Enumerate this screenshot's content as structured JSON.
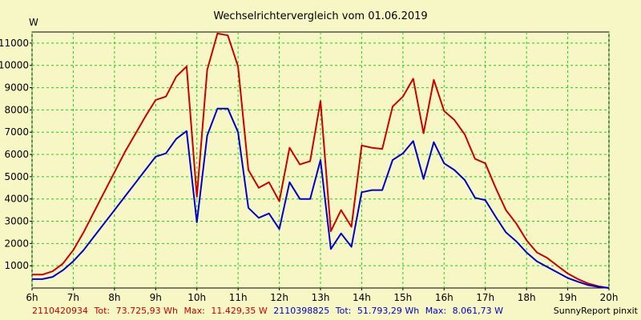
{
  "chart_data": {
    "type": "line",
    "title": "Wechselrichtervergleich vom 01.06.2019",
    "ylabel": "W",
    "xlabel": "",
    "x_ticks": [
      "6h",
      "7h",
      "8h",
      "9h",
      "10h",
      "11h",
      "12h",
      "13h",
      "14h",
      "15h",
      "16h",
      "17h",
      "18h",
      "19h",
      "20h"
    ],
    "y_ticks": [
      "1000",
      "2000",
      "3000",
      "4000",
      "5000",
      "6000",
      "7000",
      "8000",
      "9000",
      "10000",
      "11000"
    ],
    "xlim": [
      6,
      20
    ],
    "ylim": [
      0,
      11500
    ],
    "grid": true,
    "series": [
      {
        "name": "2110420934",
        "color": "#cc0000",
        "x": [
          6.0,
          6.25,
          6.5,
          6.75,
          7.0,
          7.25,
          7.5,
          7.75,
          8.0,
          8.25,
          8.5,
          8.75,
          9.0,
          9.25,
          9.5,
          9.75,
          10.0,
          10.25,
          10.5,
          10.75,
          11.0,
          11.25,
          11.5,
          11.75,
          12.0,
          12.25,
          12.5,
          12.75,
          13.0,
          13.25,
          13.5,
          13.75,
          14.0,
          14.25,
          14.5,
          14.75,
          15.0,
          15.25,
          15.5,
          15.75,
          16.0,
          16.25,
          16.5,
          16.75,
          17.0,
          17.25,
          17.5,
          17.75,
          18.0,
          18.25,
          18.5,
          18.75,
          19.0,
          19.25,
          19.5,
          19.75,
          20.0
        ],
        "values": [
          600,
          600,
          750,
          1100,
          1700,
          2500,
          3400,
          4300,
          5200,
          6100,
          6900,
          7700,
          8450,
          8600,
          9500,
          9950,
          4100,
          9800,
          11430,
          11350,
          9950,
          5300,
          4500,
          4750,
          3900,
          6300,
          5550,
          5700,
          8400,
          2550,
          3500,
          2750,
          6400,
          6300,
          6250,
          8150,
          8600,
          9400,
          6950,
          9350,
          7950,
          7550,
          6900,
          5800,
          5600,
          4500,
          3500,
          2900,
          2150,
          1600,
          1350,
          1000,
          650,
          400,
          200,
          80,
          0
        ]
      },
      {
        "name": "2110398825",
        "color": "#0000cc",
        "x": [
          6.0,
          6.25,
          6.5,
          6.75,
          7.0,
          7.25,
          7.5,
          7.75,
          8.0,
          8.25,
          8.5,
          8.75,
          9.0,
          9.25,
          9.5,
          9.75,
          10.0,
          10.25,
          10.5,
          10.75,
          11.0,
          11.25,
          11.5,
          11.75,
          12.0,
          12.25,
          12.5,
          12.75,
          13.0,
          13.25,
          13.5,
          13.75,
          14.0,
          14.25,
          14.5,
          14.75,
          15.0,
          15.25,
          15.5,
          15.75,
          16.0,
          16.25,
          16.5,
          16.75,
          17.0,
          17.25,
          17.5,
          17.75,
          18.0,
          18.25,
          18.5,
          18.75,
          19.0,
          19.25,
          19.5,
          19.75,
          20.0
        ],
        "values": [
          400,
          400,
          500,
          800,
          1200,
          1700,
          2300,
          2900,
          3500,
          4100,
          4700,
          5300,
          5900,
          6050,
          6700,
          7050,
          2950,
          6850,
          8060,
          8060,
          7000,
          3600,
          3150,
          3350,
          2650,
          4750,
          4000,
          4000,
          5750,
          1750,
          2450,
          1850,
          4300,
          4400,
          4400,
          5750,
          6050,
          6600,
          4900,
          6550,
          5600,
          5300,
          4850,
          4050,
          3950,
          3200,
          2500,
          2100,
          1600,
          1200,
          950,
          700,
          450,
          280,
          130,
          50,
          0
        ]
      }
    ]
  },
  "legend": {
    "s1_id": "2110420934",
    "s1_tot_label": "Tot:",
    "s1_tot": "73.725,93 Wh",
    "s1_max_label": "Max:",
    "s1_max": "11.429,35 W",
    "s2_id": "2110398825",
    "s2_tot_label": "Tot:",
    "s2_tot": "51.793,29 Wh",
    "s2_max_label": "Max:",
    "s2_max": "8.061,73 W",
    "s1_color": "#cc0000",
    "s2_color": "#0000cc"
  },
  "footer": {
    "credit": "SunnyReport pinxit"
  }
}
